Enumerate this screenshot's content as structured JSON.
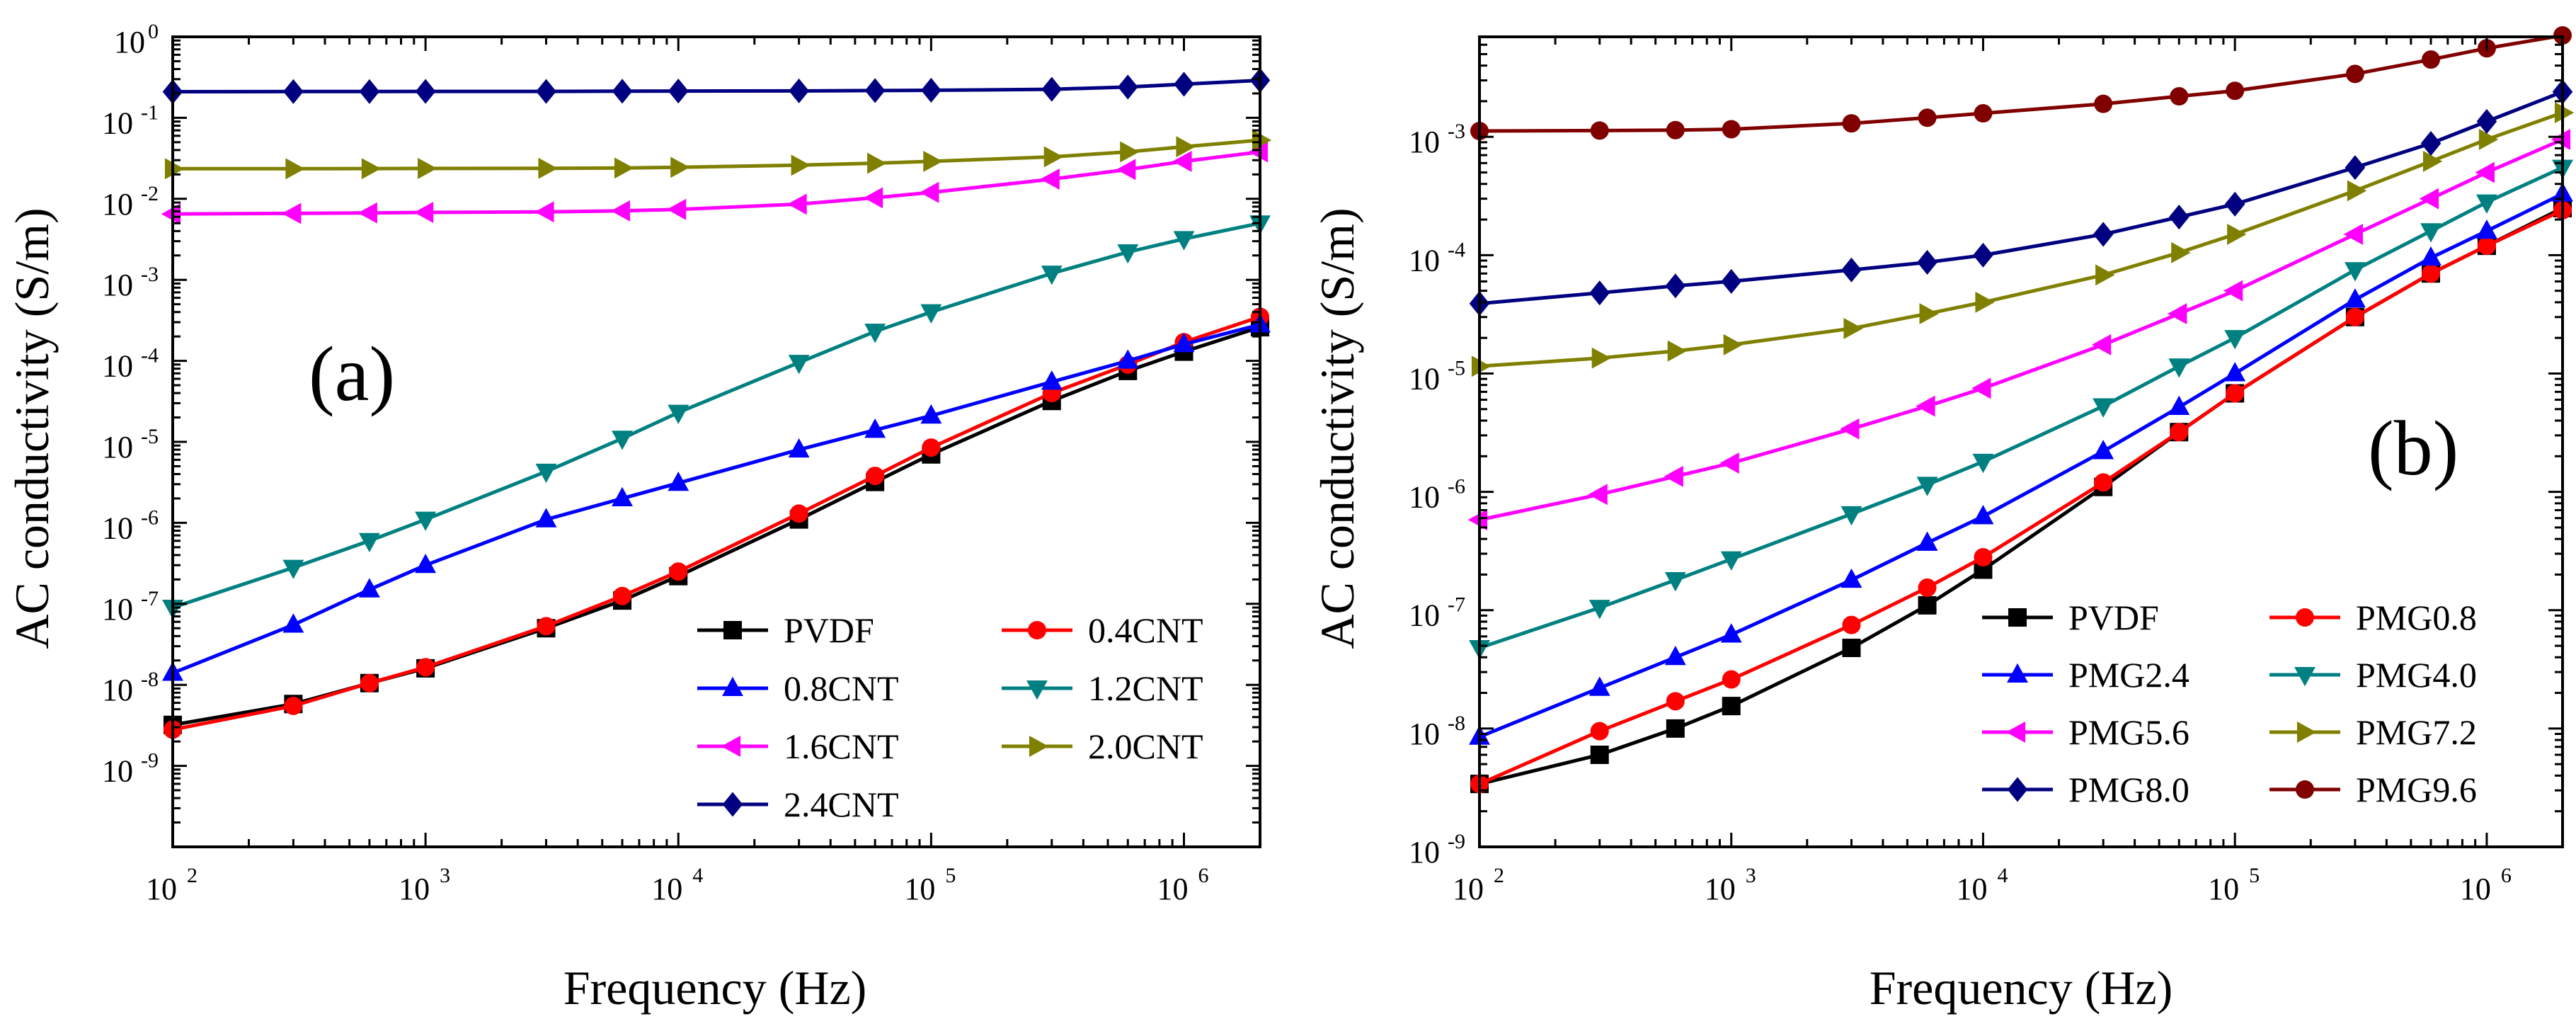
{
  "figure": "AC conductivity vs frequency",
  "chart_data": [
    {
      "type": "line",
      "panel": "(a)",
      "xlabel": "Frequency (Hz)",
      "ylabel": "AC conductivity (S/m)",
      "xscale": "log",
      "yscale": "log",
      "xlim": [
        100,
        2000000
      ],
      "ylim": [
        1e-10,
        1
      ],
      "xticks": [
        {
          "base": "10",
          "exp": "2"
        },
        {
          "base": "10",
          "exp": "3"
        },
        {
          "base": "10",
          "exp": "4"
        },
        {
          "base": "10",
          "exp": "5"
        },
        {
          "base": "10",
          "exp": "6"
        }
      ],
      "yticks": [
        {
          "base": "10",
          "exp": "-9"
        },
        {
          "base": "10",
          "exp": "-8"
        },
        {
          "base": "10",
          "exp": "-7"
        },
        {
          "base": "10",
          "exp": "-6"
        },
        {
          "base": "10",
          "exp": "-5"
        },
        {
          "base": "10",
          "exp": "-4"
        },
        {
          "base": "10",
          "exp": "-3"
        },
        {
          "base": "10",
          "exp": "-2"
        },
        {
          "base": "10",
          "exp": "-1"
        },
        {
          "base": "10",
          "exp": "0"
        }
      ],
      "x": [
        100,
        300,
        600,
        1000,
        3000,
        6000,
        10000,
        30000,
        60000,
        100000,
        300000,
        600000,
        1000000,
        2000000
      ],
      "legend_columns": 2,
      "legend_position": "lower-right",
      "series": [
        {
          "name": "PVDF",
          "color": "#000000",
          "marker": "square",
          "values": [
            3.2e-09,
            5.8e-09,
            1.05e-08,
            1.6e-08,
            5e-08,
            1.1e-07,
            2.2e-07,
            1.1e-06,
            3.2e-06,
            7e-06,
            3.2e-05,
            7.5e-05,
            0.00013,
            0.00026
          ]
        },
        {
          "name": "0.4CNT",
          "color": "#ff0000",
          "marker": "circle",
          "values": [
            2.8e-09,
            5.5e-09,
            1.05e-08,
            1.65e-08,
            5.3e-08,
            1.25e-07,
            2.5e-07,
            1.3e-06,
            3.8e-06,
            8.5e-06,
            4e-05,
            9e-05,
            0.00017,
            0.00035
          ]
        },
        {
          "name": "0.8CNT",
          "color": "#0000ff",
          "marker": "triangle-up",
          "values": [
            1.4e-08,
            5.5e-08,
            1.5e-07,
            3e-07,
            1.1e-06,
            2e-06,
            3.1e-06,
            8e-06,
            1.4e-05,
            2.1e-05,
            5.5e-05,
            0.0001,
            0.00016,
            0.00028
          ]
        },
        {
          "name": "1.2CNT",
          "color": "#008080",
          "marker": "triangle-down",
          "values": [
            9e-08,
            2.8e-07,
            6e-07,
            1.1e-06,
            4.3e-06,
            1.1e-05,
            2.3e-05,
            9.5e-05,
            0.00023,
            0.0004,
            0.0012,
            0.0022,
            0.0032,
            0.005
          ]
        },
        {
          "name": "1.6CNT",
          "color": "#ff00ff",
          "marker": "triangle-left",
          "values": [
            0.0065,
            0.0066,
            0.0067,
            0.0068,
            0.0069,
            0.0071,
            0.0074,
            0.0086,
            0.0103,
            0.012,
            0.0175,
            0.023,
            0.029,
            0.038
          ]
        },
        {
          "name": "2.0CNT",
          "color": "#808000",
          "marker": "triangle-right",
          "values": [
            0.0235,
            0.0235,
            0.0236,
            0.0237,
            0.0238,
            0.024,
            0.0245,
            0.026,
            0.0275,
            0.029,
            0.033,
            0.038,
            0.044,
            0.053
          ]
        },
        {
          "name": "2.4CNT",
          "color": "#000080",
          "marker": "diamond",
          "values": [
            0.21,
            0.211,
            0.211,
            0.212,
            0.212,
            0.213,
            0.214,
            0.215,
            0.217,
            0.219,
            0.225,
            0.24,
            0.26,
            0.29
          ]
        }
      ]
    },
    {
      "type": "line",
      "panel": "(b)",
      "xlabel": "Frequency (Hz)",
      "ylabel": "AC conductivity (S/m)",
      "xscale": "log",
      "yscale": "log",
      "xlim": [
        100,
        2000000
      ],
      "ylim": [
        1e-09,
        0.007
      ],
      "xticks": [
        {
          "base": "10",
          "exp": "2"
        },
        {
          "base": "10",
          "exp": "3"
        },
        {
          "base": "10",
          "exp": "4"
        },
        {
          "base": "10",
          "exp": "5"
        },
        {
          "base": "10",
          "exp": "6"
        }
      ],
      "yticks": [
        {
          "base": "10",
          "exp": "-9"
        },
        {
          "base": "10",
          "exp": "-8"
        },
        {
          "base": "10",
          "exp": "-7"
        },
        {
          "base": "10",
          "exp": "-6"
        },
        {
          "base": "10",
          "exp": "-5"
        },
        {
          "base": "10",
          "exp": "-4"
        },
        {
          "base": "10",
          "exp": "-3"
        }
      ],
      "x": [
        100,
        300,
        600,
        1000,
        3000,
        6000,
        10000,
        30000,
        60000,
        100000,
        300000,
        600000,
        1000000,
        2000000
      ],
      "legend_columns": 2,
      "legend_position": "lower-right",
      "series": [
        {
          "name": "PVDF",
          "color": "#000000",
          "marker": "square",
          "values": [
            3.4e-09,
            6e-09,
            1e-08,
            1.55e-08,
            4.8e-08,
            1.1e-07,
            2.2e-07,
            1.1e-06,
            3.2e-06,
            6.8e-06,
            3e-05,
            7e-05,
            0.00012,
            0.00025
          ]
        },
        {
          "name": "PMG0.8",
          "color": "#ff0000",
          "marker": "circle",
          "values": [
            3.4e-09,
            9.5e-09,
            1.7e-08,
            2.6e-08,
            7.5e-08,
            1.55e-07,
            2.8e-07,
            1.2e-06,
            3.2e-06,
            6.8e-06,
            3e-05,
            7e-05,
            0.00012,
            0.00024
          ]
        },
        {
          "name": "PMG2.4",
          "color": "#0000ff",
          "marker": "triangle-up",
          "values": [
            8.5e-09,
            2.2e-08,
            4e-08,
            6.2e-08,
            1.8e-07,
            3.7e-07,
            6.2e-07,
            2.2e-06,
            5.2e-06,
            1e-05,
            4.2e-05,
            9.5e-05,
            0.00016,
            0.00033
          ]
        },
        {
          "name": "PMG4.0",
          "color": "#008080",
          "marker": "triangle-down",
          "values": [
            4.8e-08,
            1.05e-07,
            1.8e-07,
            2.7e-07,
            6.5e-07,
            1.15e-06,
            1.8e-06,
            5.3e-06,
            1.15e-05,
            2e-05,
            7.5e-05,
            0.00016,
            0.00028,
            0.00055
          ]
        },
        {
          "name": "PMG5.6",
          "color": "#ff00ff",
          "marker": "triangle-left",
          "values": [
            5.8e-07,
            9.5e-07,
            1.35e-06,
            1.75e-06,
            3.4e-06,
            5.3e-06,
            7.5e-06,
            1.75e-05,
            3.2e-05,
            5e-05,
            0.00015,
            0.0003,
            0.0005,
            0.00095
          ]
        },
        {
          "name": "PMG7.2",
          "color": "#808000",
          "marker": "triangle-right",
          "values": [
            1.15e-05,
            1.35e-05,
            1.55e-05,
            1.75e-05,
            2.4e-05,
            3.2e-05,
            4e-05,
            6.8e-05,
            0.000105,
            0.00015,
            0.00035,
            0.00062,
            0.00095,
            0.0016
          ]
        },
        {
          "name": "PMG8.0",
          "color": "#000080",
          "marker": "diamond",
          "values": [
            3.9e-05,
            4.8e-05,
            5.5e-05,
            6e-05,
            7.5e-05,
            8.7e-05,
            0.0001,
            0.00015,
            0.00021,
            0.00027,
            0.00055,
            0.00088,
            0.00135,
            0.0024
          ]
        },
        {
          "name": "PMG9.6",
          "color": "#800000",
          "marker": "circle",
          "values": [
            0.00112,
            0.00113,
            0.00114,
            0.00116,
            0.0013,
            0.00145,
            0.00158,
            0.0019,
            0.0022,
            0.00245,
            0.0034,
            0.0045,
            0.0056,
            0.0072
          ]
        }
      ]
    }
  ]
}
